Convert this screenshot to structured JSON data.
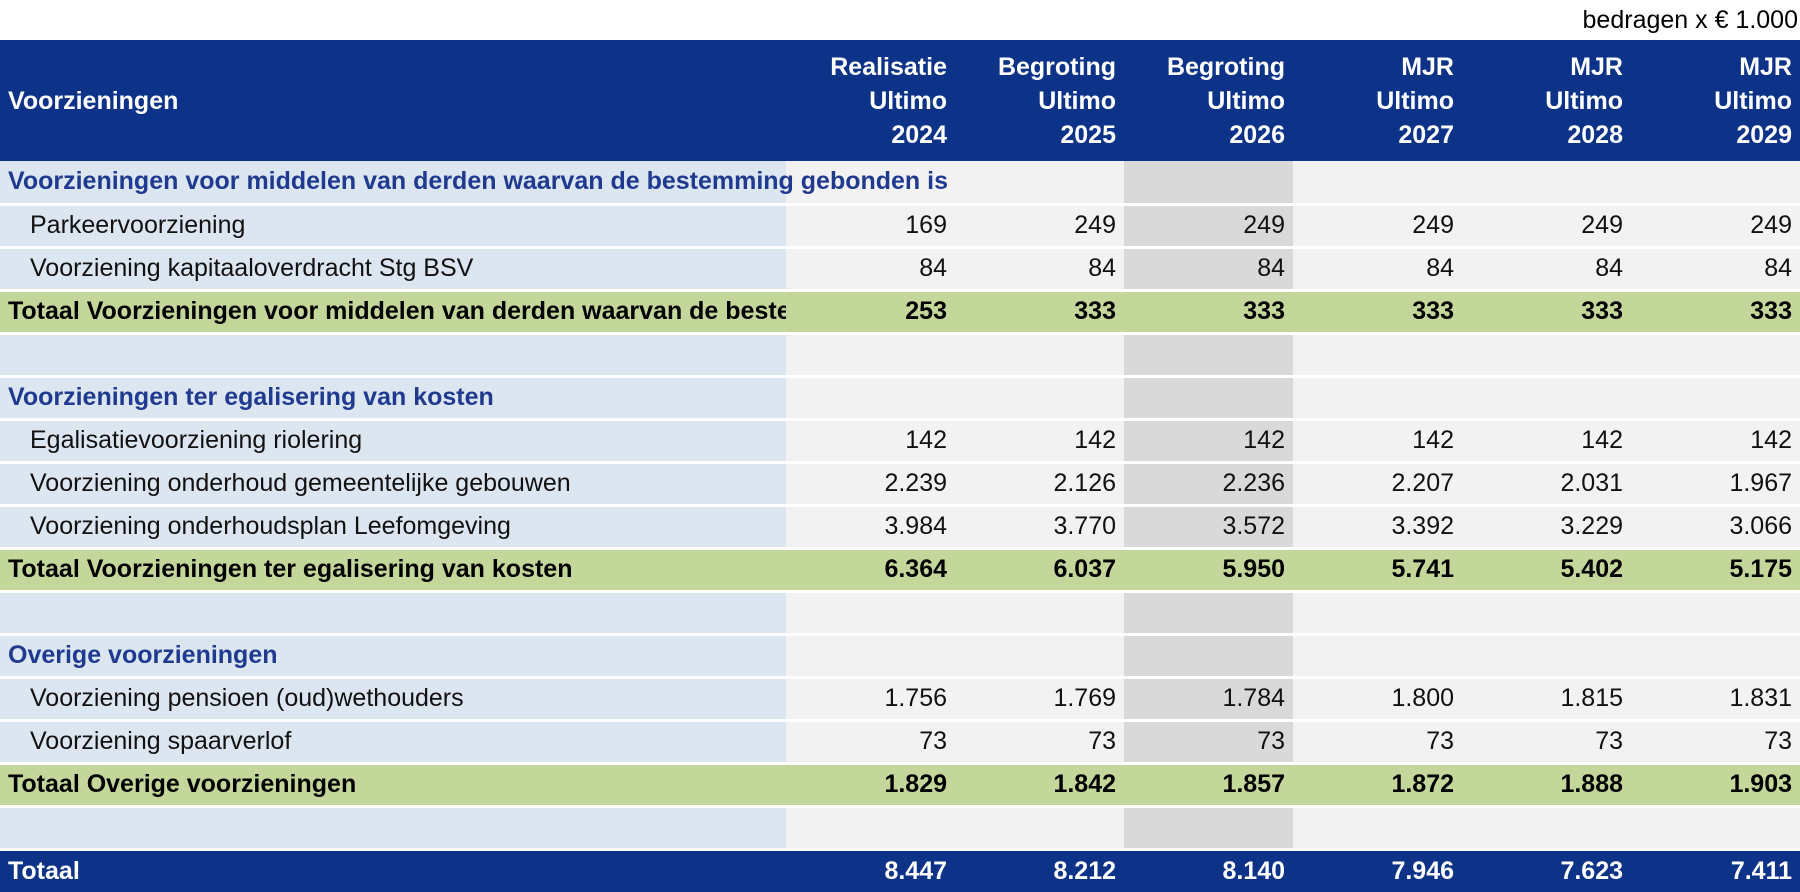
{
  "caption": "bedragen x € 1.000",
  "header": {
    "label": "Voorzieningen",
    "columns": [
      [
        "Realisatie",
        "Ultimo",
        "2024"
      ],
      [
        "Begroting",
        "Ultimo",
        "2025"
      ],
      [
        "Begroting",
        "Ultimo",
        "2026"
      ],
      [
        "MJR",
        "Ultimo",
        "2027"
      ],
      [
        "MJR",
        "Ultimo",
        "2028"
      ],
      [
        "MJR",
        "Ultimo",
        "2029"
      ]
    ]
  },
  "rows": [
    {
      "type": "section",
      "label": "Voorzieningen voor middelen van derden waarvan de bestemming gebonden is",
      "values": [
        "",
        "",
        "",
        "",
        "",
        ""
      ]
    },
    {
      "type": "item",
      "label": "Parkeervoorziening",
      "values": [
        "169",
        "249",
        "249",
        "249",
        "249",
        "249"
      ]
    },
    {
      "type": "item",
      "label": "Voorziening kapitaaloverdracht Stg BSV",
      "values": [
        "84",
        "84",
        "84",
        "84",
        "84",
        "84"
      ]
    },
    {
      "type": "total",
      "label": "Totaal Voorzieningen voor middelen van derden waarvan de bestemming gebonden is",
      "values": [
        "253",
        "333",
        "333",
        "333",
        "333",
        "333"
      ]
    },
    {
      "type": "empty",
      "label": "",
      "values": [
        "",
        "",
        "",
        "",
        "",
        ""
      ]
    },
    {
      "type": "section",
      "label": "Voorzieningen ter egalisering van kosten",
      "values": [
        "",
        "",
        "",
        "",
        "",
        ""
      ]
    },
    {
      "type": "item",
      "label": "Egalisatievoorziening riolering",
      "values": [
        "142",
        "142",
        "142",
        "142",
        "142",
        "142"
      ]
    },
    {
      "type": "item",
      "label": "Voorziening onderhoud gemeentelijke gebouwen",
      "values": [
        "2.239",
        "2.126",
        "2.236",
        "2.207",
        "2.031",
        "1.967"
      ]
    },
    {
      "type": "item",
      "label": "Voorziening onderhoudsplan Leefomgeving",
      "values": [
        "3.984",
        "3.770",
        "3.572",
        "3.392",
        "3.229",
        "3.066"
      ]
    },
    {
      "type": "total",
      "label": "Totaal Voorzieningen ter egalisering van kosten",
      "values": [
        "6.364",
        "6.037",
        "5.950",
        "5.741",
        "5.402",
        "5.175"
      ]
    },
    {
      "type": "empty",
      "label": "",
      "values": [
        "",
        "",
        "",
        "",
        "",
        ""
      ]
    },
    {
      "type": "section",
      "label": "Overige voorzieningen",
      "values": [
        "",
        "",
        "",
        "",
        "",
        ""
      ]
    },
    {
      "type": "item",
      "label": "Voorziening pensioen (oud)wethouders",
      "values": [
        "1.756",
        "1.769",
        "1.784",
        "1.800",
        "1.815",
        "1.831"
      ]
    },
    {
      "type": "item",
      "label": "Voorziening spaarverlof",
      "values": [
        "73",
        "73",
        "73",
        "73",
        "73",
        "73"
      ]
    },
    {
      "type": "total",
      "label": "Totaal Overige voorzieningen",
      "values": [
        "1.829",
        "1.842",
        "1.857",
        "1.872",
        "1.888",
        "1.903"
      ]
    },
    {
      "type": "empty",
      "label": "",
      "values": [
        "",
        "",
        "",
        "",
        "",
        ""
      ]
    },
    {
      "type": "grand",
      "label": "Totaal",
      "values": [
        "8.447",
        "8.212",
        "8.140",
        "7.946",
        "7.623",
        "7.411"
      ]
    }
  ],
  "colors": {
    "header": "#0d3388",
    "label_bg": "#dce6f1",
    "cell_bg": "#f2f2f2",
    "highlight_col": "#d9d9d9",
    "total_row": "#c4d79b",
    "section_text": "#1f3a8f"
  }
}
